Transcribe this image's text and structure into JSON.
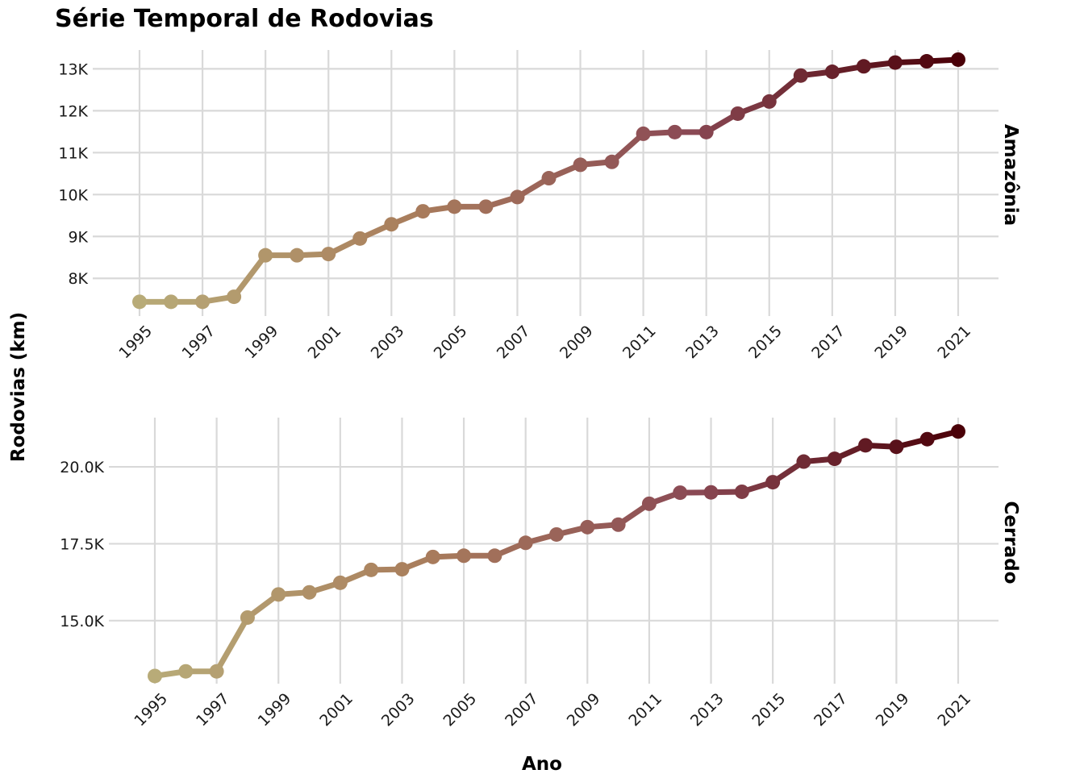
{
  "chart_data": {
    "type": "line",
    "title": "Série Temporal de Rodovias",
    "xlabel": "Ano",
    "ylabel": "Rodovias (km)",
    "x": [
      1995,
      1996,
      1997,
      1998,
      1999,
      2000,
      2001,
      2002,
      2003,
      2004,
      2005,
      2006,
      2007,
      2008,
      2009,
      2010,
      2011,
      2012,
      2013,
      2014,
      2015,
      2016,
      2017,
      2018,
      2019,
      2020,
      2021
    ],
    "x_tick_labels": [
      "1995",
      "1997",
      "1999",
      "2001",
      "2003",
      "2005",
      "2007",
      "2009",
      "2011",
      "2013",
      "2015",
      "2017",
      "2019",
      "2021"
    ],
    "grid": true,
    "color_gradient": [
      "#b8ab78",
      "#a97d5c",
      "#8b4a55",
      "#4a0008"
    ],
    "panels": [
      {
        "name": "Amazônia",
        "values": [
          7440,
          7440,
          7440,
          7560,
          8550,
          8550,
          8580,
          8950,
          9290,
          9600,
          9710,
          9710,
          9940,
          10390,
          10710,
          10780,
          11450,
          11490,
          11490,
          11930,
          12220,
          12840,
          12930,
          13060,
          13150,
          13180,
          13220
        ],
        "ylim": [
          7100,
          13450
        ],
        "y_ticks": [
          8000,
          9000,
          10000,
          11000,
          12000,
          13000
        ],
        "y_tick_labels": [
          "8K",
          "9K",
          "10K",
          "11K",
          "12K",
          "13K"
        ]
      },
      {
        "name": "Cerrado",
        "values": [
          13200,
          13350,
          13350,
          15100,
          15850,
          15920,
          16230,
          16650,
          16670,
          17070,
          17110,
          17110,
          17530,
          17800,
          18040,
          18120,
          18800,
          19160,
          19170,
          19190,
          19500,
          20170,
          20260,
          20700,
          20650,
          20900,
          21150
        ],
        "ylim": [
          12950,
          21600
        ],
        "y_ticks": [
          15000,
          17500,
          20000
        ],
        "y_tick_labels": [
          "15.0K",
          "17.5K",
          "20.0K"
        ]
      }
    ]
  }
}
